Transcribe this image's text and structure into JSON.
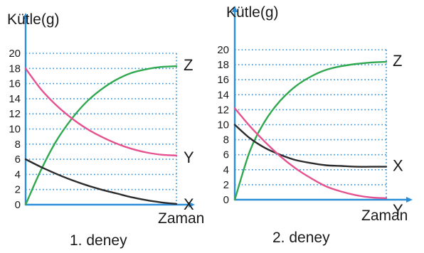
{
  "chart_data": [
    {
      "type": "line",
      "title": "1. deney",
      "xlabel": "Zaman",
      "ylabel": "Kütle(g)",
      "ylim": [
        0,
        20
      ],
      "yticks": [
        "0",
        "2",
        "4",
        "6",
        "8",
        "10",
        "12",
        "14",
        "16",
        "18",
        "20"
      ],
      "grid": true,
      "series": [
        {
          "name": "Z",
          "color": "#2fa84f",
          "x": [
            0,
            0.1,
            0.2,
            0.3,
            0.4,
            0.5,
            0.6,
            0.7,
            0.8,
            0.9,
            1.0
          ],
          "y": [
            0,
            4.5,
            8.3,
            11.2,
            13.5,
            15.2,
            16.5,
            17.4,
            17.9,
            18.2,
            18.3
          ]
        },
        {
          "name": "Y",
          "color": "#e5528f",
          "x": [
            0,
            0.1,
            0.2,
            0.3,
            0.4,
            0.5,
            0.6,
            0.7,
            0.8,
            0.9,
            1.0
          ],
          "y": [
            18,
            15.3,
            13.2,
            11.5,
            10.1,
            9.0,
            8.1,
            7.4,
            6.9,
            6.6,
            6.5
          ]
        },
        {
          "name": "X",
          "color": "#2b2b2b",
          "x": [
            0,
            0.1,
            0.2,
            0.3,
            0.4,
            0.5,
            0.6,
            0.7,
            0.8,
            0.9,
            1.0
          ],
          "y": [
            6,
            5.0,
            4.1,
            3.3,
            2.6,
            2.0,
            1.5,
            1.0,
            0.6,
            0.3,
            0.1
          ]
        }
      ]
    },
    {
      "type": "line",
      "title": "2. deney",
      "xlabel": "Zaman",
      "ylabel": "Kütle(g)",
      "ylim": [
        0,
        20
      ],
      "yticks": [
        "0",
        "2",
        "4",
        "6",
        "8",
        "10",
        "12",
        "14",
        "16",
        "18",
        "20"
      ],
      "grid": true,
      "series": [
        {
          "name": "Z",
          "color": "#2fa84f",
          "x": [
            0,
            0.1,
            0.2,
            0.3,
            0.4,
            0.5,
            0.6,
            0.7,
            0.8,
            0.9,
            1.0
          ],
          "y": [
            0,
            6.5,
            10.5,
            13.2,
            15.1,
            16.4,
            17.3,
            17.8,
            18.1,
            18.3,
            18.4
          ]
        },
        {
          "name": "X",
          "color": "#2b2b2b",
          "x": [
            0,
            0.1,
            0.2,
            0.3,
            0.4,
            0.5,
            0.6,
            0.7,
            0.8,
            0.9,
            1.0
          ],
          "y": [
            10,
            8.2,
            6.9,
            6.0,
            5.3,
            4.9,
            4.6,
            4.5,
            4.4,
            4.4,
            4.4
          ]
        },
        {
          "name": "Y",
          "color": "#e5528f",
          "x": [
            0,
            0.1,
            0.2,
            0.3,
            0.4,
            0.5,
            0.6,
            0.7,
            0.8,
            0.9,
            1.0
          ],
          "y": [
            12.2,
            9.8,
            7.7,
            5.8,
            4.2,
            2.9,
            1.8,
            1.1,
            0.6,
            0.3,
            0.2
          ]
        }
      ]
    }
  ]
}
